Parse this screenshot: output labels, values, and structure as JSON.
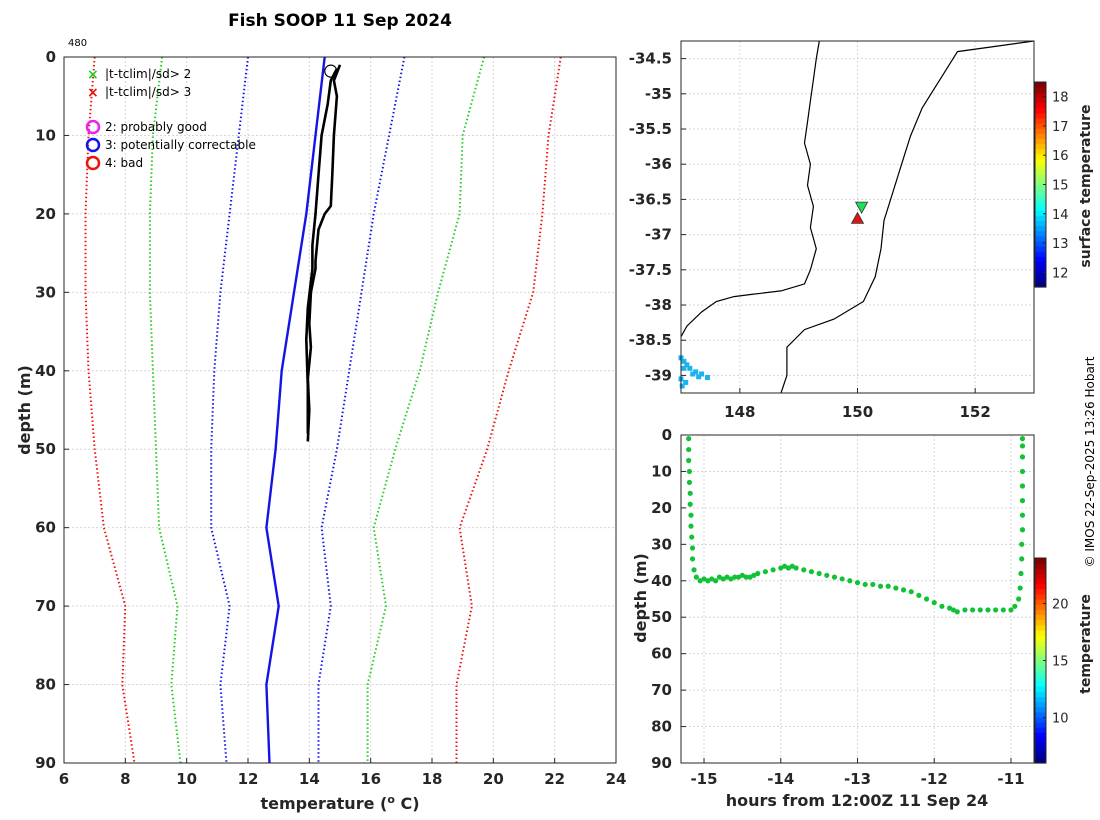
{
  "figure": {
    "title": "Fish SOOP 11 Sep 2024",
    "profile_id": "480",
    "credit": "© IMOS 22-Sep-2025 13:26 Hobart"
  },
  "legend": {
    "flag2": "|t-tclim|/sd> 2",
    "flag3": "|t-tclim|/sd> 3",
    "qc2": "2: probably good",
    "qc3": "3: potentially correctable",
    "qc4": "4: bad"
  },
  "colors": {
    "clim_outer": "#e8160c",
    "clim_mid": "#22cc22",
    "clim_inner": "#1414e6",
    "mean": "#1414e6",
    "profile": "#000000",
    "flag_green": "#22cc22",
    "flag_red": "#e8160c",
    "qc2": "#ee22ee",
    "qc3": "#1414e6",
    "qc4": "#e8160c",
    "section_points": "#12c236",
    "map_triangle_green": "#1ee05a",
    "map_triangle_red": "#e11414",
    "map_cyan": "#19b4ee"
  },
  "chart_data": [
    {
      "id": "profile",
      "type": "line",
      "xlabel": "temperature (",
      "xlabel_sup": "o",
      "xlabel_tail": " C)",
      "ylabel": "depth (m)",
      "xlim": [
        6,
        24
      ],
      "ylim": [
        90,
        0
      ],
      "xticks": [
        6,
        8,
        10,
        12,
        14,
        16,
        18,
        20,
        22,
        24
      ],
      "yticks": [
        0,
        10,
        20,
        30,
        40,
        50,
        60,
        70,
        80,
        90
      ],
      "grid": true,
      "series": [
        {
          "name": "climatology -3sd",
          "role": "clim_outer",
          "style": "dotted",
          "points": [
            [
              7.0,
              0
            ],
            [
              6.8,
              10
            ],
            [
              6.7,
              20
            ],
            [
              6.7,
              30
            ],
            [
              6.8,
              40
            ],
            [
              7.0,
              50
            ],
            [
              7.3,
              60
            ],
            [
              8.0,
              70
            ],
            [
              7.9,
              80
            ],
            [
              8.3,
              90
            ]
          ]
        },
        {
          "name": "climatology -2sd",
          "role": "clim_mid",
          "style": "dotted",
          "points": [
            [
              9.2,
              0
            ],
            [
              8.9,
              10
            ],
            [
              8.8,
              20
            ],
            [
              8.8,
              30
            ],
            [
              8.9,
              40
            ],
            [
              9.0,
              50
            ],
            [
              9.1,
              60
            ],
            [
              9.7,
              70
            ],
            [
              9.5,
              80
            ],
            [
              9.8,
              90
            ]
          ]
        },
        {
          "name": "climatology -1sd",
          "role": "clim_inner",
          "style": "dotted",
          "points": [
            [
              12.0,
              0
            ],
            [
              11.7,
              10
            ],
            [
              11.4,
              20
            ],
            [
              11.1,
              30
            ],
            [
              10.9,
              40
            ],
            [
              10.8,
              50
            ],
            [
              10.8,
              60
            ],
            [
              11.4,
              70
            ],
            [
              11.1,
              80
            ],
            [
              11.3,
              90
            ]
          ]
        },
        {
          "name": "climatology mean",
          "role": "mean",
          "style": "solid",
          "points": [
            [
              14.5,
              0
            ],
            [
              14.2,
              10
            ],
            [
              13.9,
              20
            ],
            [
              13.5,
              30
            ],
            [
              13.1,
              40
            ],
            [
              12.9,
              50
            ],
            [
              12.6,
              60
            ],
            [
              13.0,
              70
            ],
            [
              12.6,
              80
            ],
            [
              12.7,
              90
            ]
          ]
        },
        {
          "name": "climatology +1sd",
          "role": "clim_inner",
          "style": "dotted",
          "points": [
            [
              17.1,
              0
            ],
            [
              16.6,
              10
            ],
            [
              16.1,
              20
            ],
            [
              15.7,
              30
            ],
            [
              15.3,
              40
            ],
            [
              14.9,
              50
            ],
            [
              14.4,
              60
            ],
            [
              14.7,
              70
            ],
            [
              14.3,
              80
            ],
            [
              14.3,
              90
            ]
          ]
        },
        {
          "name": "climatology +2sd",
          "role": "clim_mid",
          "style": "dotted",
          "points": [
            [
              19.7,
              0
            ],
            [
              19.0,
              10
            ],
            [
              18.9,
              20
            ],
            [
              18.2,
              30
            ],
            [
              17.6,
              40
            ],
            [
              16.8,
              50
            ],
            [
              16.1,
              60
            ],
            [
              16.5,
              70
            ],
            [
              15.9,
              80
            ],
            [
              15.9,
              90
            ]
          ]
        },
        {
          "name": "climatology +3sd",
          "role": "clim_outer",
          "style": "dotted",
          "points": [
            [
              22.2,
              0
            ],
            [
              21.8,
              10
            ],
            [
              21.6,
              20
            ],
            [
              21.3,
              30
            ],
            [
              20.5,
              40
            ],
            [
              19.8,
              50
            ],
            [
              18.9,
              60
            ],
            [
              19.3,
              70
            ],
            [
              18.8,
              80
            ],
            [
              18.8,
              90
            ]
          ]
        },
        {
          "name": "observed profile",
          "role": "profile",
          "style": "solid",
          "points": [
            [
              15.0,
              1.0
            ],
            [
              14.8,
              3.0
            ],
            [
              14.9,
              5.0
            ],
            [
              14.8,
              10
            ],
            [
              14.75,
              15
            ],
            [
              14.7,
              19
            ],
            [
              14.5,
              20
            ],
            [
              14.3,
              22
            ],
            [
              14.2,
              26
            ],
            [
              14.2,
              27
            ],
            [
              14.05,
              30
            ],
            [
              14.0,
              34
            ],
            [
              14.05,
              37
            ],
            [
              13.95,
              41
            ],
            [
              14.0,
              45
            ],
            [
              13.95,
              49
            ]
          ]
        },
        {
          "name": "observed profile (upcast)",
          "role": "profile",
          "style": "solid",
          "points": [
            [
              14.9,
              1.5
            ],
            [
              14.7,
              3.0
            ],
            [
              14.6,
              6.0
            ],
            [
              14.4,
              10
            ],
            [
              14.3,
              15
            ],
            [
              14.2,
              20
            ],
            [
              14.1,
              24
            ],
            [
              14.1,
              27
            ],
            [
              13.95,
              32
            ],
            [
              13.9,
              36
            ],
            [
              13.95,
              42
            ],
            [
              13.95,
              48
            ]
          ]
        }
      ],
      "markers": [
        {
          "type": "circle",
          "role": "qc3_marker",
          "x": 14.7,
          "y": 1.8
        }
      ]
    },
    {
      "id": "map",
      "type": "scatter",
      "xlim": [
        147.0,
        153.0
      ],
      "ylim": [
        -39.25,
        -34.25
      ],
      "xticks": [
        148,
        150,
        152
      ],
      "yticks": [
        -34.5,
        -35,
        -35.5,
        -36,
        -36.5,
        -37,
        -37.5,
        -38,
        -38.5,
        -39
      ],
      "grid": true,
      "points": [
        {
          "name": "start position",
          "marker": "triangle-down",
          "lon": 150.07,
          "lat": -36.61,
          "color_role": "map_triangle_green"
        },
        {
          "name": "end position",
          "marker": "triangle-up",
          "lon": 150.0,
          "lat": -36.77,
          "color_role": "map_triangle_red"
        }
      ],
      "coastline": [
        [
          149.35,
          -34.25
        ],
        [
          149.3,
          -34.5
        ],
        [
          149.25,
          -34.8
        ],
        [
          149.2,
          -35.1
        ],
        [
          149.15,
          -35.4
        ],
        [
          149.1,
          -35.7
        ],
        [
          149.2,
          -36.0
        ],
        [
          149.15,
          -36.3
        ],
        [
          149.25,
          -36.6
        ],
        [
          149.2,
          -36.9
        ],
        [
          149.3,
          -37.2
        ],
        [
          149.2,
          -37.5
        ],
        [
          149.1,
          -37.7
        ],
        [
          148.7,
          -37.8
        ],
        [
          148.2,
          -37.85
        ],
        [
          147.9,
          -37.88
        ],
        [
          147.6,
          -37.95
        ],
        [
          147.35,
          -38.1
        ],
        [
          147.1,
          -38.3
        ],
        [
          147.0,
          -38.45
        ]
      ],
      "shelf_edge": [
        [
          153.0,
          -34.25
        ],
        [
          151.7,
          -34.4
        ],
        [
          151.4,
          -34.8
        ],
        [
          151.1,
          -35.2
        ],
        [
          150.9,
          -35.6
        ],
        [
          150.75,
          -36.0
        ],
        [
          150.6,
          -36.4
        ],
        [
          150.45,
          -36.8
        ],
        [
          150.4,
          -37.2
        ],
        [
          150.3,
          -37.6
        ],
        [
          150.1,
          -37.95
        ],
        [
          149.6,
          -38.2
        ],
        [
          149.1,
          -38.35
        ],
        [
          148.8,
          -38.6
        ],
        [
          148.8,
          -39.0
        ],
        [
          148.7,
          -39.25
        ]
      ],
      "colorbar": {
        "label": "surface temperature",
        "min": 11.5,
        "max": 18.5,
        "ticks": [
          12,
          13,
          14,
          15,
          16,
          17,
          18
        ]
      }
    },
    {
      "id": "section",
      "type": "scatter",
      "xlabel": "hours from 12:00Z 11 Sep 24",
      "ylabel": "depth (m)",
      "xlim": [
        -15.3,
        -10.7
      ],
      "ylim": [
        90,
        0
      ],
      "xticks": [
        -15,
        -14,
        -13,
        -12,
        -11
      ],
      "yticks": [
        0,
        10,
        20,
        30,
        40,
        50,
        60,
        70,
        80,
        90
      ],
      "grid": true,
      "colorbar": {
        "label": "temperature",
        "min": 6,
        "max": 24,
        "ticks": [
          10,
          15,
          20
        ]
      },
      "points": [
        [
          -15.2,
          1
        ],
        [
          -15.2,
          4
        ],
        [
          -15.2,
          7
        ],
        [
          -15.19,
          10
        ],
        [
          -15.19,
          13
        ],
        [
          -15.18,
          16
        ],
        [
          -15.18,
          19
        ],
        [
          -15.17,
          22
        ],
        [
          -15.17,
          25
        ],
        [
          -15.16,
          28
        ],
        [
          -15.15,
          31
        ],
        [
          -15.15,
          34
        ],
        [
          -15.13,
          37
        ],
        [
          -15.1,
          39
        ],
        [
          -15.05,
          40
        ],
        [
          -15.0,
          39.5
        ],
        [
          -14.95,
          40
        ],
        [
          -14.9,
          39.5
        ],
        [
          -14.85,
          40
        ],
        [
          -14.8,
          39
        ],
        [
          -14.75,
          39.5
        ],
        [
          -14.7,
          39
        ],
        [
          -14.65,
          39.5
        ],
        [
          -14.6,
          39
        ],
        [
          -14.55,
          39
        ],
        [
          -14.5,
          38.5
        ],
        [
          -14.45,
          39
        ],
        [
          -14.4,
          39
        ],
        [
          -14.35,
          38.5
        ],
        [
          -14.3,
          38
        ],
        [
          -14.2,
          37.5
        ],
        [
          -14.1,
          37
        ],
        [
          -14.0,
          36.5
        ],
        [
          -13.95,
          36
        ],
        [
          -13.9,
          36.5
        ],
        [
          -13.85,
          36
        ],
        [
          -13.8,
          36.5
        ],
        [
          -13.7,
          37
        ],
        [
          -13.6,
          37.5
        ],
        [
          -13.5,
          38
        ],
        [
          -13.4,
          38.5
        ],
        [
          -13.3,
          39
        ],
        [
          -13.2,
          39.5
        ],
        [
          -13.1,
          40
        ],
        [
          -13.0,
          40.5
        ],
        [
          -12.9,
          41
        ],
        [
          -12.8,
          41
        ],
        [
          -12.7,
          41.5
        ],
        [
          -12.6,
          41.5
        ],
        [
          -12.5,
          42
        ],
        [
          -12.4,
          42.5
        ],
        [
          -12.3,
          43
        ],
        [
          -12.2,
          44
        ],
        [
          -12.1,
          45
        ],
        [
          -12.0,
          46
        ],
        [
          -11.9,
          47
        ],
        [
          -11.8,
          47.5
        ],
        [
          -11.75,
          48
        ],
        [
          -11.7,
          48.5
        ],
        [
          -11.6,
          48
        ],
        [
          -11.5,
          48
        ],
        [
          -11.4,
          48
        ],
        [
          -11.3,
          48
        ],
        [
          -11.2,
          48
        ],
        [
          -11.1,
          48
        ],
        [
          -11.0,
          48
        ],
        [
          -10.95,
          47
        ],
        [
          -10.9,
          45
        ],
        [
          -10.88,
          42
        ],
        [
          -10.87,
          38
        ],
        [
          -10.86,
          34
        ],
        [
          -10.86,
          30
        ],
        [
          -10.85,
          26
        ],
        [
          -10.85,
          22
        ],
        [
          -10.85,
          18
        ],
        [
          -10.85,
          14
        ],
        [
          -10.85,
          10
        ],
        [
          -10.85,
          6
        ],
        [
          -10.85,
          3
        ],
        [
          -10.85,
          1
        ]
      ]
    }
  ]
}
